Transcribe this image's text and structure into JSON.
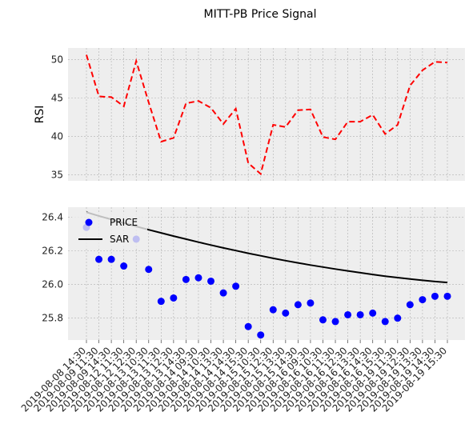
{
  "chart_data": {
    "title": "MITT-PB Price Signal",
    "categories": [
      "2019-08-08 14:30",
      "2019-08-09 11:30",
      "2019-08-09 14:30",
      "2019-08-12 11:30",
      "2019-08-12 12:30",
      "2019-08-13 10:30",
      "2019-08-13 11:30",
      "2019-08-13 12:30",
      "2019-08-13 14:30",
      "2019-08-14 09:30",
      "2019-08-14 10:30",
      "2019-08-14 13:30",
      "2019-08-14 14:30",
      "2019-08-14 15:30",
      "2019-08-15 10:30",
      "2019-08-15 12:30",
      "2019-08-15 13:30",
      "2019-08-15 14:30",
      "2019-08-16 09:30",
      "2019-08-16 10:30",
      "2019-08-16 11:30",
      "2019-08-16 12:30",
      "2019-08-16 13:30",
      "2019-08-16 14:30",
      "2019-08-16 15:30",
      "2019-08-19 11:30",
      "2019-08-19 12:30",
      "2019-08-19 13:30",
      "2019-08-19 14:30",
      "2019-08-19 15:30"
    ],
    "panels": [
      {
        "type": "line",
        "ylabel": "RSI",
        "ylim": [
          34.2,
          51.5
        ],
        "yticks": [
          35,
          40,
          45,
          50
        ],
        "grid": true,
        "series": [
          {
            "color": "#ff0000",
            "style": "dashed",
            "values": [
              50.6,
              45.2,
              45.1,
              43.9,
              49.8,
              44.4,
              39.3,
              39.8,
              44.3,
              44.6,
              43.7,
              41.6,
              43.6,
              36.5,
              35.1,
              41.5,
              41.2,
              43.4,
              43.5,
              39.9,
              39.6,
              41.9,
              41.9,
              42.8,
              40.3,
              41.5,
              46.6,
              48.6,
              49.7,
              49.6
            ]
          }
        ]
      },
      {
        "type": "scatter+line",
        "ylabel": "",
        "ylim": [
          25.67,
          26.46
        ],
        "yticks": [
          25.8,
          26.0,
          26.2,
          26.4
        ],
        "grid": true,
        "legend_position": "top-left",
        "series": [
          {
            "name": "PRICE",
            "type": "scatter",
            "color": "#0000ff",
            "values": [
              26.34,
              26.15,
              26.15,
              26.11,
              26.27,
              26.09,
              25.9,
              25.92,
              26.03,
              26.04,
              26.02,
              25.95,
              25.99,
              25.75,
              25.7,
              25.85,
              25.83,
              25.88,
              25.89,
              25.79,
              25.78,
              25.82,
              25.82,
              25.83,
              25.78,
              25.8,
              25.88,
              25.91,
              25.93,
              25.93
            ]
          },
          {
            "name": "SAR",
            "type": "line",
            "color": "#000000",
            "values": [
              26.43,
              26.408,
              26.387,
              26.366,
              26.346,
              26.326,
              26.307,
              26.288,
              26.27,
              26.252,
              26.235,
              26.218,
              26.202,
              26.186,
              26.171,
              26.156,
              26.142,
              26.129,
              26.116,
              26.104,
              26.092,
              26.081,
              26.07,
              26.06,
              26.05,
              26.041,
              26.033,
              26.025,
              26.018,
              26.012
            ]
          }
        ]
      }
    ]
  }
}
